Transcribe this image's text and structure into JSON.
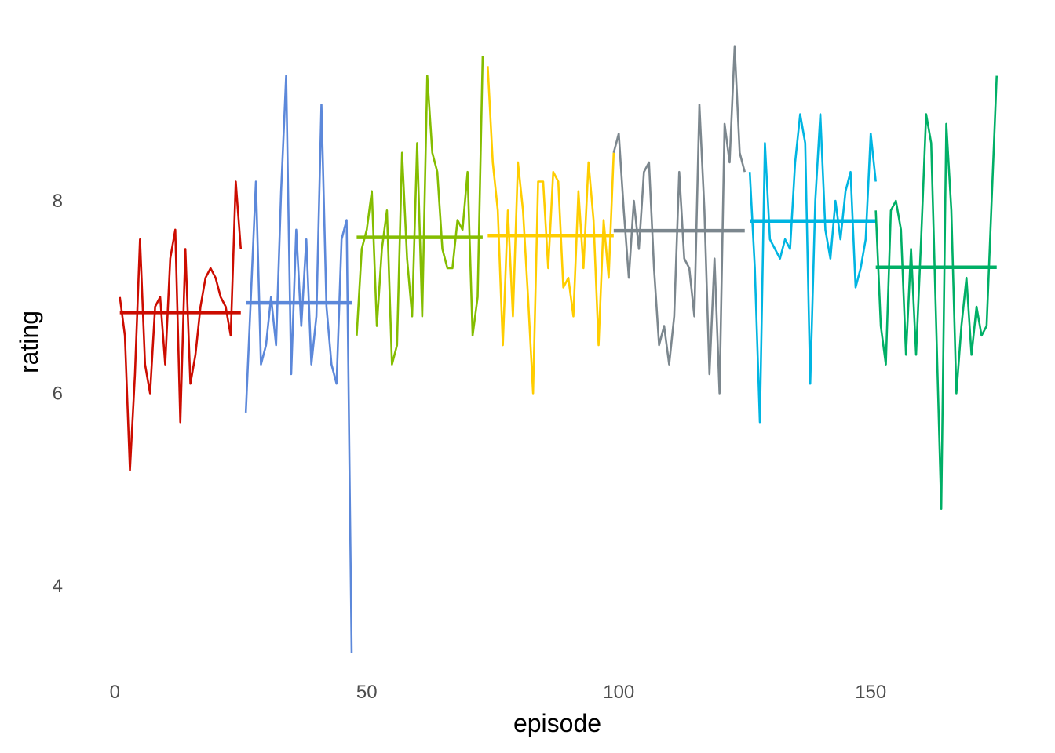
{
  "chart_data": {
    "type": "line",
    "title": "",
    "xlabel": "episode",
    "ylabel": "rating",
    "xlim": [
      -3,
      178
    ],
    "ylim": [
      3.2,
      9.72
    ],
    "x_ticks": [
      0,
      50,
      100,
      150
    ],
    "y_ticks": [
      4,
      6,
      8
    ],
    "grid": false,
    "legend": "none",
    "series": [
      {
        "color": "#CC0C00",
        "x_start": 1,
        "values": [
          7.0,
          6.6,
          5.2,
          6.2,
          7.6,
          6.3,
          6.0,
          6.9,
          7.0,
          6.3,
          7.4,
          7.7,
          5.7,
          7.5,
          6.1,
          6.4,
          6.9,
          7.2,
          7.3,
          7.2,
          7.0,
          6.9,
          6.6,
          8.2,
          7.5
        ],
        "mean": 6.84
      },
      {
        "color": "#5C88DA",
        "x_start": 26,
        "values": [
          5.8,
          7.0,
          8.2,
          6.3,
          6.5,
          7.0,
          6.5,
          8.1,
          9.3,
          6.2,
          7.7,
          6.7,
          7.6,
          6.3,
          6.8,
          9.0,
          6.9,
          6.3,
          6.1,
          7.6,
          7.8,
          3.3
        ],
        "mean": 6.94
      },
      {
        "color": "#84BD00",
        "x_start": 48,
        "values": [
          6.6,
          7.5,
          7.7,
          8.1,
          6.7,
          7.5,
          7.9,
          6.3,
          6.5,
          8.5,
          7.4,
          6.8,
          8.6,
          6.8,
          9.3,
          8.5,
          8.3,
          7.5,
          7.3,
          7.3,
          7.8,
          7.7,
          8.3,
          6.6,
          7.0,
          9.5
        ],
        "mean": 7.62
      },
      {
        "color": "#FFCD00",
        "x_start": 74,
        "values": [
          9.4,
          8.4,
          7.9,
          6.5,
          7.9,
          6.8,
          8.4,
          7.9,
          7.0,
          6.0,
          8.2,
          8.2,
          7.3,
          8.3,
          8.2,
          7.1,
          7.2,
          6.8,
          8.1,
          7.3,
          8.4,
          7.8,
          6.5,
          7.8,
          7.2,
          8.5
        ],
        "mean": 7.64
      },
      {
        "color": "#7C878E",
        "x_start": 99,
        "values": [
          8.5,
          8.7,
          7.9,
          7.2,
          8.0,
          7.5,
          8.3,
          8.4,
          7.3,
          6.5,
          6.7,
          6.3,
          6.8,
          8.3,
          7.4,
          7.3,
          6.8,
          9.0,
          7.9,
          6.2,
          7.4,
          6.0,
          8.8,
          8.4,
          9.6,
          8.5,
          8.3
        ],
        "mean": 7.69
      },
      {
        "color": "#00B5E2",
        "x_start": 126,
        "values": [
          8.3,
          7.3,
          5.7,
          8.6,
          7.6,
          7.5,
          7.4,
          7.6,
          7.5,
          8.4,
          8.9,
          8.6,
          6.1,
          8.0,
          8.9,
          7.7,
          7.4,
          8.0,
          7.6,
          8.1,
          8.3,
          7.1,
          7.3,
          7.6,
          8.7,
          8.2
        ],
        "mean": 7.79
      },
      {
        "color": "#00AF66",
        "x_start": 151,
        "values": [
          7.9,
          6.7,
          6.3,
          7.9,
          8.0,
          7.7,
          6.4,
          7.5,
          6.4,
          7.6,
          8.9,
          8.6,
          6.7,
          4.8,
          8.8,
          7.9,
          6.0,
          6.7,
          7.2,
          6.4,
          6.9,
          6.6,
          6.7,
          8.0,
          9.3
        ],
        "mean": 7.31
      }
    ]
  }
}
